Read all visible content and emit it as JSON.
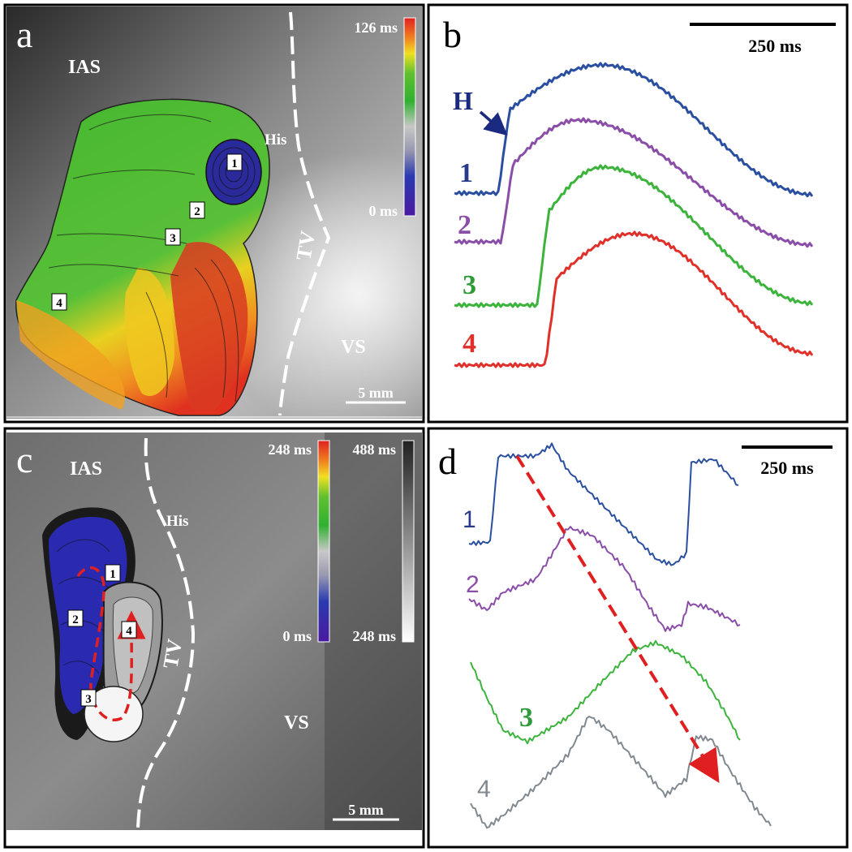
{
  "panel_a": {
    "letter": "a",
    "labels": {
      "ias": "IAS",
      "his": "His",
      "tv": "TV",
      "vs": "VS"
    },
    "scale_bar": "5 mm",
    "colorbar": {
      "max": "126 ms",
      "min": "0 ms"
    },
    "sites": [
      "1",
      "2",
      "3",
      "4"
    ]
  },
  "panel_b": {
    "letter": "b",
    "scale_bar": "250 ms",
    "marker": "H",
    "trace_labels": [
      "1",
      "2",
      "3",
      "4"
    ],
    "colors": [
      "#2a4fa0",
      "#8a4ea8",
      "#3cb43c",
      "#e0302a"
    ]
  },
  "panel_c": {
    "letter": "c",
    "labels": {
      "ias": "IAS",
      "his": "His",
      "tv": "TV",
      "vs": "VS"
    },
    "scale_bar": "5 mm",
    "colorbar_color": {
      "max": "248 ms",
      "min": "0 ms"
    },
    "colorbar_gray": {
      "max": "488 ms",
      "min": "248 ms"
    },
    "sites": [
      "1",
      "2",
      "3",
      "4"
    ]
  },
  "panel_d": {
    "letter": "d",
    "scale_bar": "250 ms",
    "trace_labels": [
      "1",
      "2",
      "3",
      "4"
    ],
    "colors": [
      "#2a4fa0",
      "#8a4ea8",
      "#3cb43c",
      "#808890"
    ]
  }
}
